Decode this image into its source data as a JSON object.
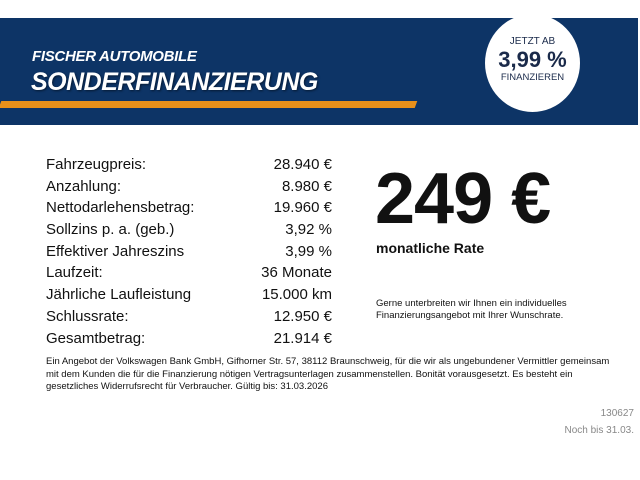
{
  "colors": {
    "banner": "#0d3466",
    "stripe": "#e8901a"
  },
  "banner": {
    "brand": "FISCHER AUTOMOBILE",
    "title": "SONDERFINANZIERUNG",
    "badge": {
      "line1": "JETZT AB",
      "rate": "3,99 %",
      "line2": "FINANZIEREN"
    }
  },
  "rows": [
    {
      "label": "Fahrzeugpreis:",
      "value": "28.940 €"
    },
    {
      "label": "Anzahlung:",
      "value": "8.980 €"
    },
    {
      "label": "Nettodarlehensbetrag:",
      "value": "19.960 €"
    },
    {
      "label": "Sollzins p. a. (geb.)",
      "value": "3,92 %"
    },
    {
      "label": "Effektiver Jahreszins",
      "value": "3,99 %"
    },
    {
      "label": "Laufzeit:",
      "value": "36 Monate"
    },
    {
      "label": "Jährliche Laufleistung",
      "value": "15.000 km"
    },
    {
      "label": "Schlussrate:",
      "value": "12.950 €"
    },
    {
      "label": "Gesamtbetrag:",
      "value": "21.914 €"
    }
  ],
  "monthly": {
    "amount": "249 €",
    "label": "monatliche Rate"
  },
  "note": "Gerne unterbreiten wir Ihnen ein individuelles Finanzierungsangebot mit Ihrer Wunschrate.",
  "legal": "Ein Angebot der Volkswagen Bank GmbH, Gifhorner Str. 57, 38112 Braunschweig, für die wir als ungebundener Vermittler gemeinsam mit dem Kunden die für die Finanzierung nötigen Vertragsunterlagen zusammenstellen. Bonität vorausgesetzt. Es besteht ein gesetzliches Widerrufsrecht für Verbraucher. Gültig bis: 31.03.2026",
  "footer": {
    "id": "130627",
    "until": "Noch bis 31.03."
  }
}
